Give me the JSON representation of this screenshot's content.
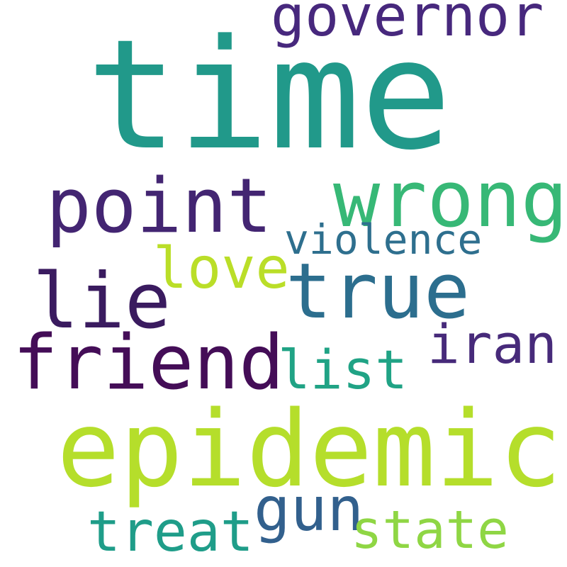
{
  "words": [
    {
      "text": "time",
      "color": "#21998a"
    },
    {
      "text": "governor",
      "color": "#47287d"
    },
    {
      "text": "wrong",
      "color": "#37b876"
    },
    {
      "text": "point",
      "color": "#432572"
    },
    {
      "text": "violence",
      "color": "#2e6f8e"
    },
    {
      "text": "love",
      "color": "#bade28"
    },
    {
      "text": "true",
      "color": "#2c6e8e"
    },
    {
      "text": "lie",
      "color": "#3a1b5f"
    },
    {
      "text": "iran",
      "color": "#472a7a"
    },
    {
      "text": "friend",
      "color": "#440d57"
    },
    {
      "text": "list",
      "color": "#20a385"
    },
    {
      "text": "epidemic",
      "color": "#b5de2b"
    },
    {
      "text": "gun",
      "color": "#32608d"
    },
    {
      "text": "treat",
      "color": "#1f9d89"
    },
    {
      "text": "state",
      "color": "#8fd644"
    }
  ]
}
